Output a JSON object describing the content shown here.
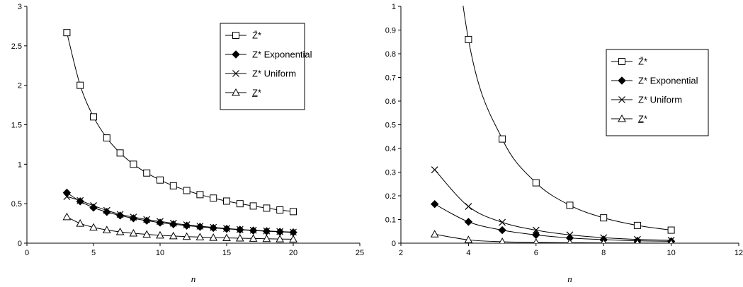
{
  "chart_data": [
    {
      "type": "line",
      "xlabel": "n",
      "ylabel": "",
      "xlim": [
        0,
        25
      ],
      "ylim": [
        0,
        3
      ],
      "xticks": [
        0,
        5,
        10,
        15,
        20,
        25
      ],
      "yticks": [
        0,
        0.5,
        1,
        1.5,
        2,
        2.5,
        3
      ],
      "grid": false,
      "legend_position": "right",
      "series": [
        {
          "name": "Z̄*",
          "marker": "square-open",
          "x": [
            3,
            4,
            5,
            6,
            7,
            8,
            9,
            10,
            11,
            12,
            13,
            14,
            15,
            16,
            17,
            18,
            19,
            20
          ],
          "y": [
            2.667,
            2.0,
            1.6,
            1.333,
            1.143,
            1.0,
            0.889,
            0.8,
            0.727,
            0.667,
            0.615,
            0.571,
            0.533,
            0.5,
            0.471,
            0.444,
            0.421,
            0.4
          ]
        },
        {
          "name": "Z* Exponential",
          "marker": "diamond-filled",
          "x": [
            3,
            4,
            5,
            6,
            7,
            8,
            9,
            10,
            11,
            12,
            13,
            14,
            15,
            16,
            17,
            18,
            19,
            20
          ],
          "y": [
            0.64,
            0.53,
            0.45,
            0.395,
            0.35,
            0.315,
            0.285,
            0.26,
            0.24,
            0.222,
            0.207,
            0.193,
            0.181,
            0.17,
            0.16,
            0.152,
            0.144,
            0.137
          ]
        },
        {
          "name": "Z* Uniform",
          "marker": "x",
          "x": [
            3,
            4,
            5,
            6,
            7,
            8,
            9,
            10,
            11,
            12,
            13,
            14,
            15,
            16,
            17,
            18,
            19,
            20
          ],
          "y": [
            0.59,
            0.54,
            0.475,
            0.415,
            0.365,
            0.33,
            0.3,
            0.275,
            0.252,
            0.232,
            0.215,
            0.2,
            0.186,
            0.174,
            0.164,
            0.155,
            0.147,
            0.14
          ]
        },
        {
          "name": "Z̲*",
          "marker": "triangle-open",
          "x": [
            3,
            4,
            5,
            6,
            7,
            8,
            9,
            10,
            11,
            12,
            13,
            14,
            15,
            16,
            17,
            18,
            19,
            20
          ],
          "y": [
            0.333,
            0.25,
            0.2,
            0.167,
            0.143,
            0.125,
            0.111,
            0.1,
            0.091,
            0.083,
            0.077,
            0.071,
            0.067,
            0.063,
            0.059,
            0.056,
            0.053,
            0.05
          ]
        }
      ]
    },
    {
      "type": "line",
      "xlabel": "n",
      "ylabel": "",
      "xlim": [
        2,
        12
      ],
      "ylim": [
        0,
        1
      ],
      "xticks": [
        2,
        4,
        6,
        8,
        10,
        12
      ],
      "yticks": [
        0,
        0.1,
        0.2,
        0.3,
        0.4,
        0.5,
        0.6,
        0.7,
        0.8,
        0.9,
        1
      ],
      "grid": false,
      "legend_position": "right",
      "series": [
        {
          "name": "Z̄*",
          "marker": "square-open",
          "x": [
            3,
            4,
            5,
            6,
            7,
            8,
            9,
            10
          ],
          "y": [
            2.0,
            0.86,
            0.44,
            0.255,
            0.16,
            0.107,
            0.075,
            0.055
          ]
        },
        {
          "name": "Z* Exponential",
          "marker": "diamond-filled",
          "x": [
            3,
            4,
            5,
            6,
            7,
            8,
            9,
            10
          ],
          "y": [
            0.165,
            0.09,
            0.055,
            0.035,
            0.022,
            0.015,
            0.01,
            0.008
          ]
        },
        {
          "name": "Z* Uniform",
          "marker": "x",
          "x": [
            3,
            4,
            5,
            6,
            7,
            8,
            9,
            10
          ],
          "y": [
            0.31,
            0.155,
            0.088,
            0.055,
            0.035,
            0.023,
            0.016,
            0.012
          ]
        },
        {
          "name": "Z̲*",
          "marker": "triangle-open",
          "x": [
            3,
            4,
            5,
            6,
            7,
            8,
            9,
            10
          ],
          "y": [
            0.038,
            0.014,
            0.006,
            0.003,
            0.002,
            0.001,
            0.0005,
            0.0002
          ]
        }
      ]
    }
  ]
}
